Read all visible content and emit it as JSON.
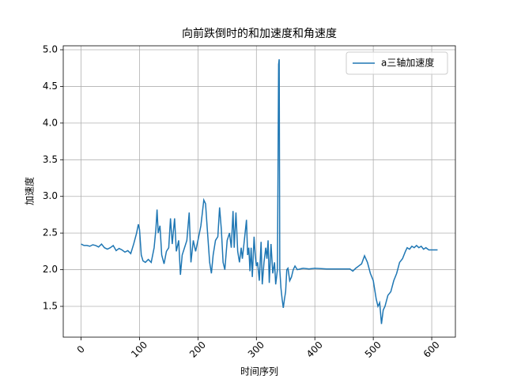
{
  "chart_data": {
    "type": "line",
    "title": "向前跌倒时的和加速度和角速度",
    "xlabel": "时间序列",
    "ylabel": "加速度",
    "x": [
      0,
      5,
      10,
      15,
      20,
      25,
      30,
      35,
      40,
      45,
      50,
      55,
      60,
      65,
      70,
      75,
      80,
      85,
      90,
      95,
      98,
      100,
      103,
      106,
      110,
      115,
      120,
      125,
      128,
      130,
      132,
      135,
      138,
      142,
      146,
      150,
      153,
      156,
      160,
      163,
      167,
      170,
      173,
      177,
      181,
      185,
      188,
      192,
      196,
      200,
      205,
      210,
      213,
      216,
      220,
      223,
      226,
      230,
      234,
      237,
      240,
      243,
      246,
      250,
      254,
      257,
      260,
      262,
      265,
      268,
      271,
      274,
      276,
      280,
      283,
      285,
      287,
      289,
      291,
      293,
      296,
      298,
      300,
      302,
      305,
      308,
      310,
      313,
      316,
      318,
      320,
      322,
      325,
      328,
      331,
      333,
      336,
      338,
      339,
      340,
      342,
      344,
      346,
      348,
      350,
      352,
      354,
      357,
      360,
      363,
      366,
      370,
      380,
      390,
      400,
      420,
      440,
      460,
      465,
      470,
      475,
      480,
      485,
      490,
      495,
      500,
      505,
      508,
      511,
      514,
      517,
      520,
      525,
      530,
      535,
      540,
      545,
      550,
      555,
      558,
      562,
      566,
      570,
      574,
      578,
      582,
      586,
      590,
      595,
      600,
      610
    ],
    "series": [
      {
        "name": "a三轴加速度",
        "color": "#1f77b4",
        "values": [
          2.35,
          2.33,
          2.33,
          2.32,
          2.34,
          2.33,
          2.31,
          2.35,
          2.3,
          2.28,
          2.3,
          2.33,
          2.26,
          2.29,
          2.27,
          2.24,
          2.26,
          2.22,
          2.35,
          2.5,
          2.62,
          2.55,
          2.2,
          2.12,
          2.1,
          2.14,
          2.1,
          2.3,
          2.55,
          2.82,
          2.5,
          2.6,
          2.2,
          2.08,
          2.25,
          2.3,
          2.7,
          2.35,
          2.7,
          2.25,
          2.4,
          1.93,
          2.2,
          2.3,
          2.4,
          2.78,
          2.1,
          2.4,
          2.25,
          2.4,
          2.6,
          2.95,
          2.9,
          2.55,
          2.1,
          1.95,
          2.2,
          2.4,
          2.45,
          2.85,
          2.55,
          2.1,
          2.0,
          2.4,
          2.5,
          2.3,
          2.8,
          2.3,
          2.78,
          2.25,
          2.1,
          2.3,
          2.15,
          2.45,
          2.68,
          2.2,
          2.3,
          1.98,
          2.3,
          1.9,
          2.45,
          2.2,
          2.05,
          2.1,
          1.85,
          2.38,
          1.8,
          2.1,
          2.3,
          2.15,
          2.4,
          1.82,
          2.35,
          1.95,
          2.1,
          1.8,
          2.0,
          4.8,
          4.87,
          2.0,
          1.75,
          1.6,
          1.48,
          1.6,
          1.7,
          2.0,
          2.02,
          1.85,
          1.9,
          2.0,
          2.05,
          2.0,
          2.02,
          2.01,
          2.02,
          2.01,
          2.01,
          2.01,
          1.98,
          2.02,
          2.05,
          2.08,
          2.19,
          2.1,
          1.95,
          1.85,
          1.6,
          1.5,
          1.55,
          1.26,
          1.45,
          1.5,
          1.65,
          1.7,
          1.85,
          1.95,
          2.1,
          2.15,
          2.25,
          2.3,
          2.28,
          2.32,
          2.3,
          2.33,
          2.3,
          2.32,
          2.28,
          2.3,
          2.27,
          2.27,
          2.27
        ]
      }
    ],
    "xlim": [
      -30.5,
      640.5
    ],
    "ylim": [
      1.08,
      5.054
    ],
    "xticks": [
      0,
      100,
      200,
      300,
      400,
      500,
      600
    ],
    "yticks": [
      1.5,
      {
        "value": 2.0,
        "label": "2.0"
      },
      2.5,
      {
        "value": 3.0,
        "label": "3.0"
      },
      3.5,
      {
        "value": 4.0,
        "label": "4.0"
      },
      4.5,
      {
        "value": 5.0,
        "label": "5.0"
      }
    ],
    "grid": true,
    "legend": "upper right"
  }
}
